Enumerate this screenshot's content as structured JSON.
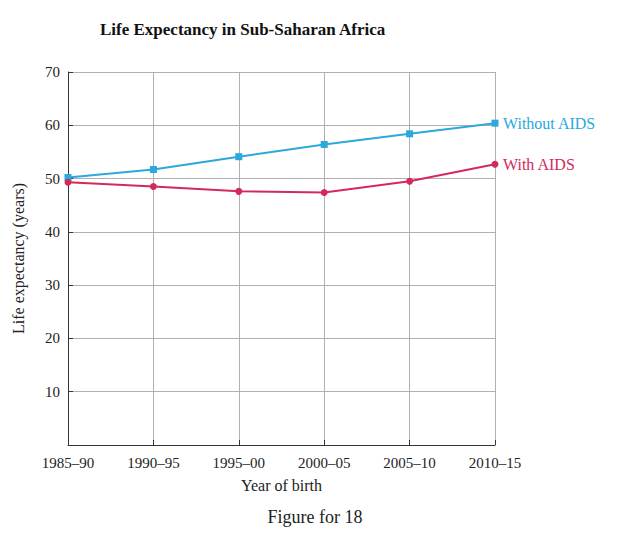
{
  "chart_data": {
    "type": "line",
    "title": "Life Expectancy in Sub-Saharan Africa",
    "x_label": "Year of birth",
    "y_label": "Life expectancy (years)",
    "annotations": [
      "Figure for 18"
    ],
    "categories": [
      "1985–90",
      "1990–95",
      "1995–00",
      "2000–05",
      "2005–10",
      "2010–15"
    ],
    "series": [
      {
        "name": "Without AIDS",
        "color": "#2ba8dc",
        "marker": "square",
        "values": [
          50.2,
          51.7,
          54.1,
          56.4,
          58.4,
          60.4
        ]
      },
      {
        "name": "With AIDS",
        "color": "#d42a5b",
        "marker": "circle",
        "values": [
          49.3,
          48.5,
          47.6,
          47.4,
          49.5,
          52.7
        ]
      }
    ],
    "ylim": [
      0,
      70
    ],
    "yticks": [
      10,
      20,
      30,
      40,
      50,
      60,
      70
    ],
    "grid": true
  }
}
